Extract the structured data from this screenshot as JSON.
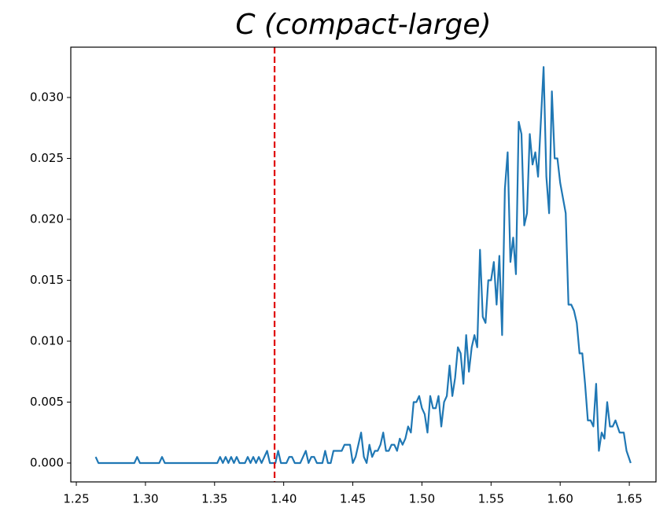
{
  "chart_data": {
    "type": "line",
    "title": "C (compact-large)",
    "x": [
      1.264,
      1.266,
      1.292,
      1.294,
      1.296,
      1.31,
      1.312,
      1.314,
      1.352,
      1.354,
      1.356,
      1.358,
      1.36,
      1.362,
      1.364,
      1.366,
      1.368,
      1.372,
      1.374,
      1.376,
      1.378,
      1.38,
      1.382,
      1.384,
      1.388,
      1.39,
      1.394,
      1.396,
      1.398,
      1.402,
      1.404,
      1.406,
      1.408,
      1.412,
      1.416,
      1.418,
      1.42,
      1.422,
      1.424,
      1.428,
      1.43,
      1.432,
      1.434,
      1.436,
      1.44,
      1.442,
      1.444,
      1.448,
      1.45,
      1.452,
      1.456,
      1.458,
      1.46,
      1.462,
      1.464,
      1.466,
      1.468,
      1.47,
      1.472,
      1.474,
      1.476,
      1.478,
      1.48,
      1.482,
      1.484,
      1.486,
      1.488,
      1.49,
      1.492,
      1.494,
      1.496,
      1.498,
      1.5,
      1.502,
      1.504,
      1.506,
      1.508,
      1.51,
      1.512,
      1.514,
      1.516,
      1.518,
      1.52,
      1.522,
      1.524,
      1.526,
      1.528,
      1.53,
      1.532,
      1.534,
      1.536,
      1.538,
      1.54,
      1.542,
      1.544,
      1.546,
      1.548,
      1.55,
      1.552,
      1.554,
      1.556,
      1.558,
      1.56,
      1.562,
      1.564,
      1.566,
      1.568,
      1.57,
      1.572,
      1.574,
      1.576,
      1.578,
      1.58,
      1.582,
      1.584,
      1.586,
      1.588,
      1.59,
      1.592,
      1.594,
      1.596,
      1.598,
      1.6,
      1.604,
      1.606,
      1.608,
      1.61,
      1.612,
      1.614,
      1.616,
      1.618,
      1.62,
      1.622,
      1.624,
      1.626,
      1.628,
      1.63,
      1.632,
      1.634,
      1.636,
      1.638,
      1.64,
      1.643,
      1.646,
      1.648,
      1.651
    ],
    "series": [
      {
        "color": "#1f77b4",
        "values": [
          0.0005,
          0,
          0,
          0.0005,
          0,
          0,
          0.0005,
          0,
          0,
          0.0005,
          0,
          0.0005,
          0,
          0.0005,
          0,
          0.0005,
          0,
          0,
          0.0005,
          0,
          0.0005,
          0,
          0.0005,
          0,
          0.001,
          0,
          0,
          0.001,
          0,
          0,
          0.0005,
          0.0005,
          0,
          0,
          0.001,
          0,
          0.0005,
          0.0005,
          0,
          0,
          0.001,
          0,
          0,
          0.001,
          0.001,
          0.001,
          0.0015,
          0.0015,
          0,
          0.0005,
          0.0025,
          0.0005,
          0,
          0.0015,
          0.0005,
          0.001,
          0.001,
          0.0015,
          0.0025,
          0.001,
          0.001,
          0.0015,
          0.0015,
          0.001,
          0.002,
          0.0015,
          0.002,
          0.003,
          0.0025,
          0.005,
          0.005,
          0.0055,
          0.0045,
          0.004,
          0.0025,
          0.0055,
          0.0045,
          0.0045,
          0.0055,
          0.003,
          0.005,
          0.0055,
          0.008,
          0.0055,
          0.007,
          0.0095,
          0.009,
          0.0065,
          0.0105,
          0.0075,
          0.0095,
          0.0105,
          0.0095,
          0.0175,
          0.012,
          0.0115,
          0.015,
          0.015,
          0.0165,
          0.013,
          0.017,
          0.0105,
          0.0225,
          0.0255,
          0.0165,
          0.0185,
          0.0155,
          0.028,
          0.027,
          0.0195,
          0.0205,
          0.027,
          0.0245,
          0.0255,
          0.0235,
          0.028,
          0.0325,
          0.0235,
          0.0205,
          0.0305,
          0.025,
          0.025,
          0.023,
          0.0205,
          0.013,
          0.013,
          0.0125,
          0.0115,
          0.009,
          0.009,
          0.0065,
          0.0035,
          0.0035,
          0.003,
          0.0065,
          0.001,
          0.0025,
          0.002,
          0.005,
          0.003,
          0.003,
          0.0035,
          0.0025,
          0.0025,
          0.001,
          0
        ]
      }
    ],
    "vline": {
      "x": 1.3934,
      "color": "#e00000"
    },
    "xlim": [
      1.246,
      1.6693
    ],
    "ylim": [
      -0.00155,
      0.03413
    ],
    "xticks": [
      {
        "value": 1.25,
        "label": "1.25"
      },
      {
        "value": 1.3,
        "label": "1.30"
      },
      {
        "value": 1.35,
        "label": "1.35"
      },
      {
        "value": 1.4,
        "label": "1.40"
      },
      {
        "value": 1.45,
        "label": "1.45"
      },
      {
        "value": 1.5,
        "label": "1.50"
      },
      {
        "value": 1.55,
        "label": "1.55"
      },
      {
        "value": 1.6,
        "label": "1.60"
      },
      {
        "value": 1.65,
        "label": "1.65"
      }
    ],
    "yticks": [
      {
        "value": 0,
        "label": "0.000"
      },
      {
        "value": 0.005,
        "label": "0.005"
      },
      {
        "value": 0.01,
        "label": "0.010"
      },
      {
        "value": 0.015,
        "label": "0.015"
      },
      {
        "value": 0.02,
        "label": "0.020"
      },
      {
        "value": 0.025,
        "label": "0.025"
      },
      {
        "value": 0.03,
        "label": "0.030"
      }
    ]
  }
}
